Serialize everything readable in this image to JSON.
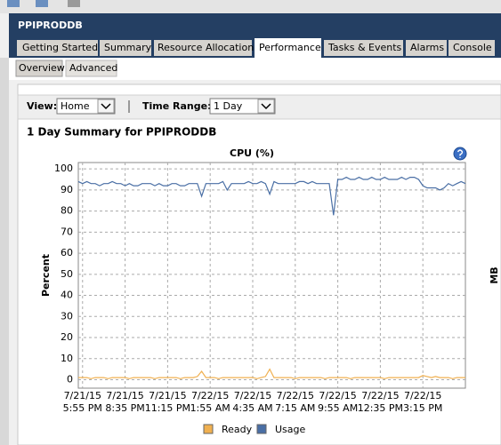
{
  "header": {
    "title": "PPIPRODDB"
  },
  "tabs": [
    "Getting Started",
    "Summary",
    "Resource Allocation",
    "Performance",
    "Tasks & Events",
    "Alarms",
    "Console"
  ],
  "subtabs": [
    "Overview",
    "Advanced"
  ],
  "view": {
    "label": "View:",
    "value": "Home"
  },
  "time_range": {
    "label": "Time Range:",
    "value": "1 Day"
  },
  "summary_title": "1 Day Summary for PPIPRODDB",
  "chart_data": {
    "type": "line",
    "title": "CPU (%)",
    "y_label": "Percent",
    "y2_label": "MB",
    "categories": [
      null,
      "7/21/15 5:55 PM",
      null,
      null,
      null,
      null,
      null,
      null,
      null,
      null,
      null,
      "7/21/15 8:35 PM",
      null,
      null,
      null,
      null,
      null,
      null,
      null,
      null,
      null,
      "7/21/15 11:15 PM",
      null,
      null,
      null,
      null,
      null,
      null,
      null,
      null,
      null,
      "7/22/15 1:55 AM",
      null,
      null,
      null,
      null,
      null,
      null,
      null,
      null,
      null,
      "7/22/15 4:35 AM",
      null,
      null,
      null,
      null,
      null,
      null,
      null,
      null,
      null,
      "7/22/15 7:15 AM",
      null,
      null,
      null,
      null,
      null,
      null,
      null,
      null,
      null,
      "7/22/15 9:55 AM",
      null,
      null,
      null,
      null,
      null,
      null,
      null,
      null,
      null,
      "7/22/15 12:35 PM",
      null,
      null,
      null,
      null,
      null,
      null,
      null,
      null,
      null,
      "7/22/15 3:15 PM",
      null,
      null,
      null,
      null,
      null,
      null,
      null,
      null,
      null,
      null
    ],
    "series": [
      {
        "name": "Ready",
        "color": "#f0b050",
        "values": [
          1,
          1,
          1,
          0.5,
          1,
          1,
          1,
          0.5,
          1,
          1,
          1,
          1,
          0.5,
          1,
          1,
          1,
          1,
          1,
          0.5,
          1,
          1,
          1,
          1,
          1,
          0.5,
          1,
          1,
          1,
          1.5,
          4,
          1,
          1,
          1,
          0.5,
          1,
          1,
          1,
          1,
          1,
          1,
          1,
          1,
          0.5,
          1,
          1.5,
          5,
          1,
          1,
          1,
          1,
          1,
          0.5,
          1,
          1,
          1,
          1,
          1,
          1,
          0.5,
          1,
          1,
          1,
          1,
          1,
          0.5,
          1,
          1,
          1,
          1,
          1,
          1,
          1,
          0.5,
          1,
          1,
          1,
          1,
          1,
          1,
          1,
          1,
          2,
          1.5,
          1,
          1.5,
          1,
          1,
          1,
          0.5,
          1,
          1,
          1
        ]
      },
      {
        "name": "Usage",
        "color": "#4a6fa5",
        "values": [
          94,
          93,
          94,
          93,
          93,
          92,
          93,
          93,
          94,
          93,
          93,
          92,
          93,
          92,
          92,
          93,
          93,
          93,
          92,
          93,
          92,
          92,
          93,
          93,
          92,
          92,
          93,
          93,
          93,
          87,
          93,
          93,
          93,
          93,
          94,
          90,
          93,
          93,
          93,
          93,
          94,
          93,
          93,
          94,
          93,
          88,
          94,
          93,
          93,
          93,
          93,
          93,
          94,
          94,
          93,
          94,
          93,
          93,
          93,
          93,
          78,
          95,
          95,
          96,
          95,
          95,
          96,
          95,
          95,
          96,
          95,
          95,
          96,
          95,
          95,
          95,
          96,
          95,
          96,
          96,
          95,
          92,
          91,
          91,
          91,
          90,
          91,
          93,
          92,
          93,
          94,
          93
        ]
      }
    ],
    "ylim": [
      -4,
      103
    ],
    "yticks": [
      0,
      10,
      20,
      30,
      40,
      50,
      60,
      70,
      80,
      90,
      100
    ],
    "grid": true
  }
}
